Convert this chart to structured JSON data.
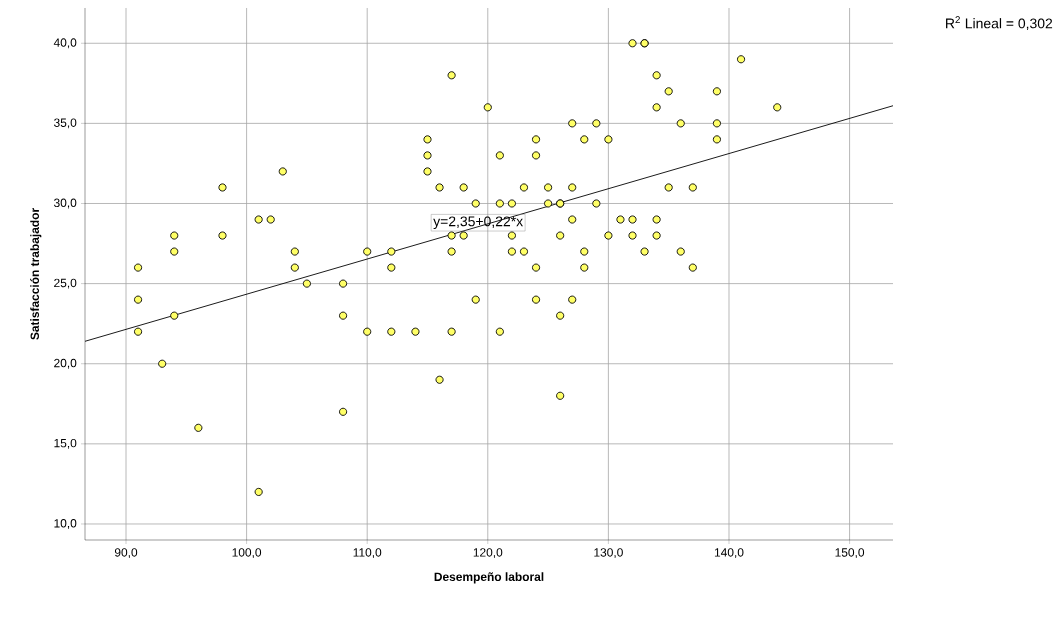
{
  "chart_data": {
    "type": "scatter",
    "xlabel": "Desempeño laboral",
    "ylabel": "Satisfacción trabajador",
    "x": [
      91,
      91,
      91,
      93,
      94,
      94,
      94,
      96,
      98,
      98,
      101,
      101,
      102,
      103,
      104,
      104,
      105,
      108,
      108,
      108,
      110,
      110,
      112,
      112,
      112,
      114,
      115,
      115,
      115,
      116,
      116,
      117,
      117,
      117,
      117,
      118,
      118,
      119,
      119,
      120,
      121,
      121,
      121,
      122,
      122,
      122,
      123,
      123,
      124,
      124,
      124,
      124,
      125,
      125,
      126,
      126,
      126,
      126,
      126,
      127,
      127,
      127,
      127,
      128,
      128,
      128,
      129,
      129,
      130,
      130,
      131,
      132,
      132,
      132,
      133,
      133,
      133,
      134,
      134,
      134,
      134,
      135,
      135,
      136,
      136,
      137,
      137,
      139,
      139,
      139,
      141,
      144
    ],
    "series": [
      {
        "type": "line",
        "x": [
          86.6,
          153.6
        ],
        "values": [
          21.4,
          36.1
        ],
        "color": "#000000",
        "marker": "none"
      },
      {
        "color": "#ffff66",
        "values": [
          26,
          24,
          22,
          20,
          28,
          27,
          23,
          16,
          31,
          28,
          29,
          12,
          29,
          32,
          27,
          26,
          25,
          25,
          23,
          17,
          27,
          22,
          27,
          26,
          22,
          22,
          34,
          32,
          33,
          31,
          19,
          38,
          28,
          27,
          22,
          31,
          28,
          30,
          24,
          36,
          33,
          30,
          22,
          30,
          28,
          27,
          31,
          27,
          34,
          33,
          26,
          24,
          31,
          30,
          30,
          28,
          23,
          18,
          30,
          35,
          31,
          29,
          24,
          34,
          27,
          26,
          35,
          30,
          34,
          28,
          29,
          40,
          29,
          28,
          40,
          27,
          40,
          38,
          36,
          29,
          28,
          37,
          31,
          35,
          27,
          31,
          26,
          37,
          35,
          34,
          39,
          36
        ]
      }
    ],
    "xlim": [
      86.6,
      153.6
    ],
    "ylim": [
      9,
      42.2
    ],
    "xticks": [
      {
        "value": 90,
        "label": "90,0"
      },
      {
        "value": 100,
        "label": "100,0"
      },
      {
        "value": 110,
        "label": "110,0"
      },
      {
        "value": 120,
        "label": "120,0"
      },
      {
        "value": 130,
        "label": "130,0"
      },
      {
        "value": 140,
        "label": "140,0"
      },
      {
        "value": 150,
        "label": "150,0"
      }
    ],
    "yticks": [
      {
        "value": 10,
        "label": "10,0"
      },
      {
        "value": 15,
        "label": "15,0"
      },
      {
        "value": 20,
        "label": "20,0"
      },
      {
        "value": 25,
        "label": "25,0"
      },
      {
        "value": 30,
        "label": "30,0"
      },
      {
        "value": 35,
        "label": "35,0"
      },
      {
        "value": 40,
        "label": "40,0"
      }
    ],
    "grid": true,
    "marker": "circle",
    "annotations": [
      "R$^{2}$ Lineal = 0,302",
      {
        "text": "y=2,35+0,22*x",
        "x": 119.2,
        "y": 28.8
      }
    ]
  }
}
